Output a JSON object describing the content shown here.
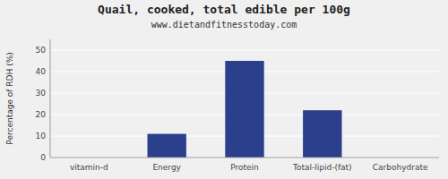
{
  "chart_data": {
    "type": "bar",
    "title": "Quail, cooked, total edible per 100g",
    "subtitle": "www.dietandfitnesstoday.com",
    "categories": [
      "vitamin-d",
      "Energy",
      "Protein",
      "Total-lipid-(fat)",
      "Carbohydrate"
    ],
    "values": [
      0,
      11,
      45,
      22,
      0
    ],
    "color": "#2b3f8c",
    "ylabel": "Percentage of RDH (%)",
    "ylim": [
      0,
      55
    ],
    "yticks": [
      0,
      10,
      20,
      30,
      40,
      50
    ],
    "grid": true
  }
}
